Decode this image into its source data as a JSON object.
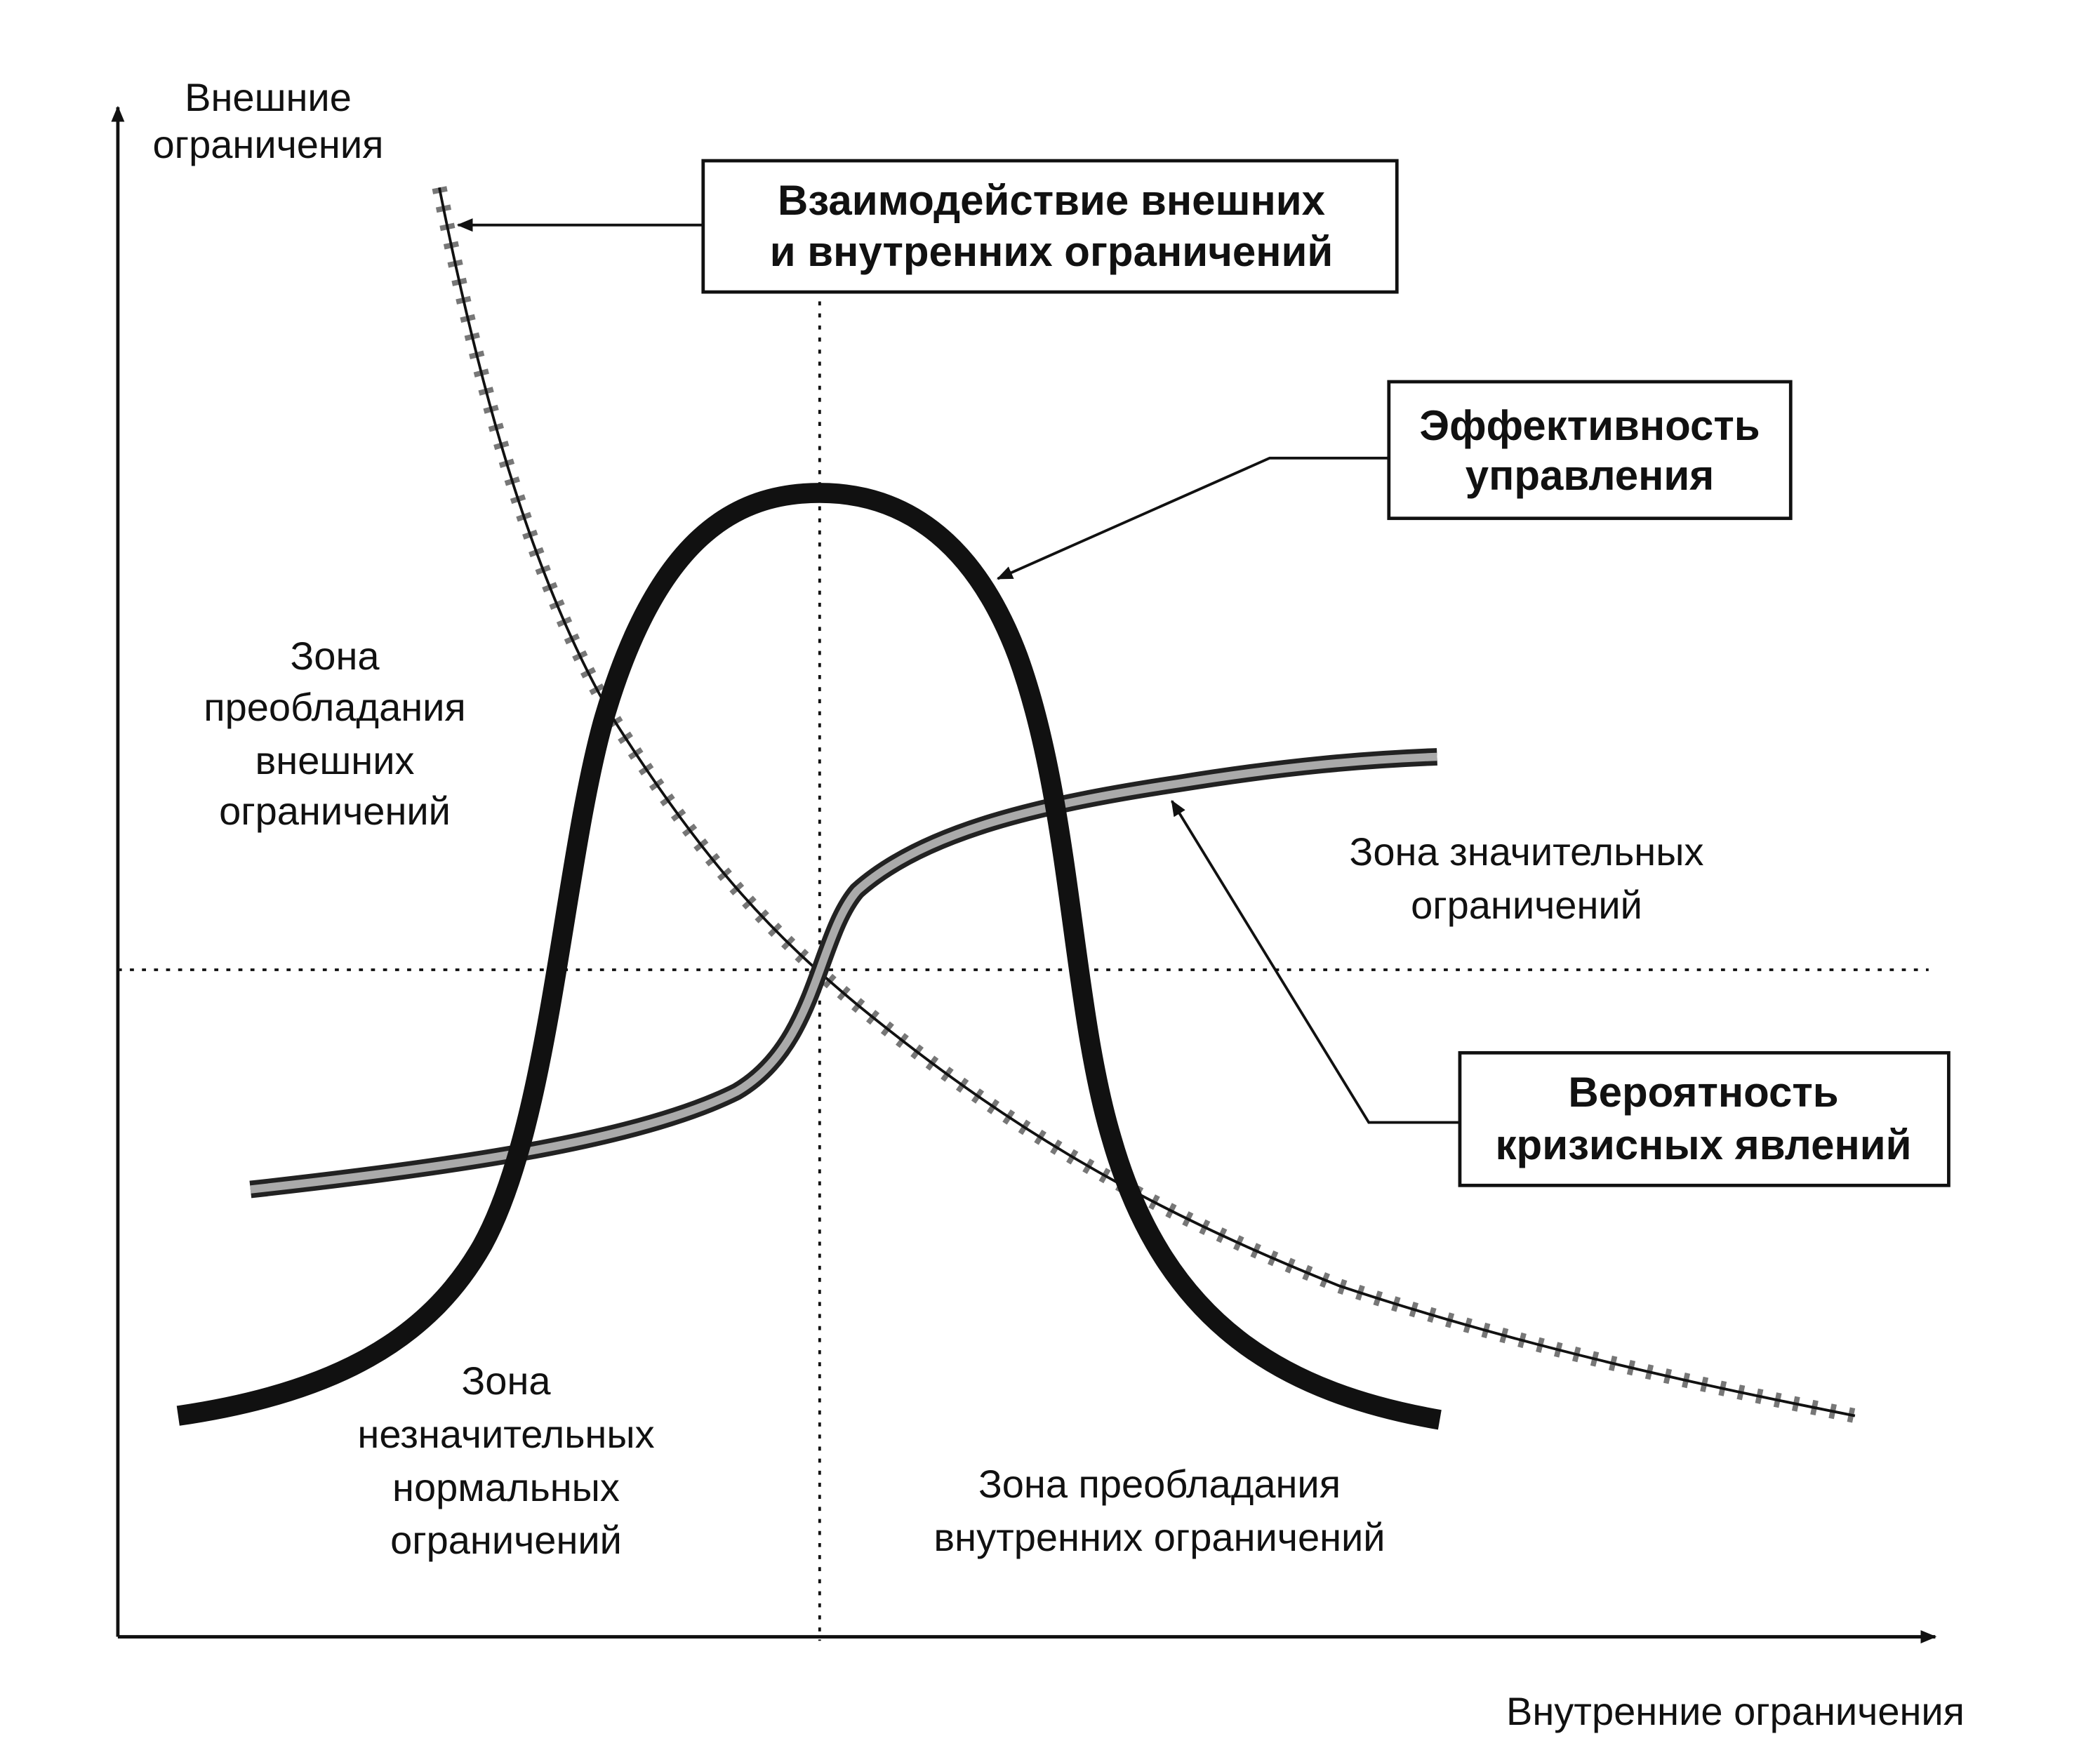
{
  "axes": {
    "y_label": [
      "Внешние",
      "ограничения"
    ],
    "x_label": "Внутренние ограничения"
  },
  "boxes": [
    {
      "lines": [
        "Взаимодействие внешних",
        "и внутренних ограничений"
      ]
    },
    {
      "lines": [
        "Эффективность",
        "управления"
      ]
    },
    {
      "lines": [
        "Вероятность",
        "кризисных явлений"
      ]
    }
  ],
  "zones": [
    {
      "lines": [
        "Зона",
        "преобладания",
        "внешних",
        "ограничений"
      ]
    },
    {
      "lines": [
        "Зона значительных",
        "ограничений"
      ]
    },
    {
      "lines": [
        "Зона",
        "незначительных",
        "нормальных",
        "ограничений"
      ]
    },
    {
      "lines": [
        "Зона преобладания",
        "внутренних ограничений"
      ]
    }
  ]
}
